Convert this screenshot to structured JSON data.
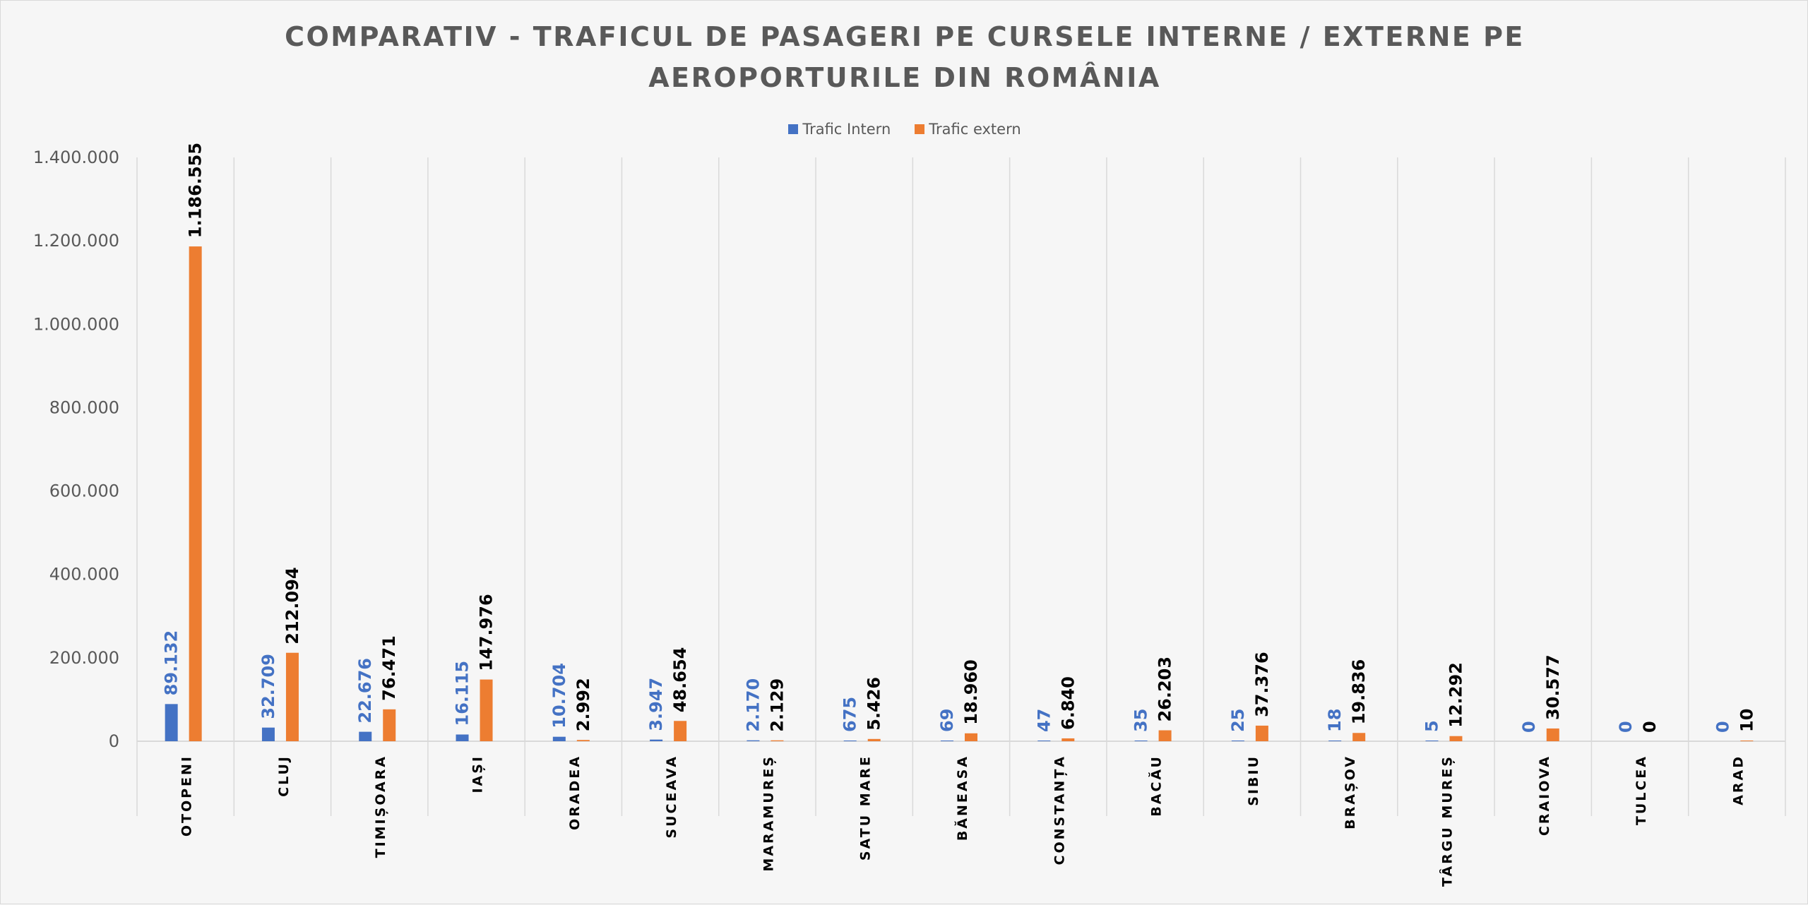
{
  "chart_data": {
    "type": "bar",
    "title": "COMPARATIV - TRAFICUL DE PASAGERI PE CURSELE INTERNE / EXTERNE PE AEROPORTURILE DIN ROMÂNIA",
    "xlabel": "",
    "ylabel": "",
    "ylim": [
      0,
      1400000
    ],
    "y_ticks": [
      "0",
      "200.000",
      "400.000",
      "600.000",
      "800.000",
      "1.000.000",
      "1.200.000",
      "1.400.000"
    ],
    "legend_position": "top",
    "grid": "vertical category separators",
    "categories": [
      "OTOPENI",
      "CLUJ",
      "TIMIȘOARA",
      "IAȘI",
      "ORADEA",
      "SUCEAVA",
      "MARAMUREȘ",
      "SATU MARE",
      "BĂNEASA",
      "CONSTANȚA",
      "BACĂU",
      "SIBIU",
      "BRAȘOV",
      "TÂRGU MUREȘ",
      "CRAIOVA",
      "TULCEA",
      "ARAD"
    ],
    "series": [
      {
        "name": "Trafic Intern",
        "color": "#4472c4",
        "values": [
          89132,
          32709,
          22676,
          16115,
          10704,
          3947,
          2170,
          675,
          69,
          47,
          35,
          25,
          18,
          5,
          0,
          0,
          0
        ],
        "labels": [
          "89.132",
          "32.709",
          "22.676",
          "16.115",
          "10.704",
          "3.947",
          "2.170",
          "675",
          "69",
          "47",
          "35",
          "25",
          "18",
          "5",
          "0",
          "0",
          "0"
        ]
      },
      {
        "name": "Trafic extern",
        "color": "#ed7d31",
        "values": [
          1186555,
          212094,
          76471,
          147976,
          2992,
          48654,
          2129,
          5426,
          18960,
          6840,
          26203,
          37376,
          19836,
          12292,
          30577,
          0,
          10
        ],
        "labels": [
          "1.186.555",
          "212.094",
          "76.471",
          "147.976",
          "2.992",
          "48.654",
          "2.129",
          "5.426",
          "18.960",
          "6.840",
          "26.203",
          "37.376",
          "19.836",
          "12.292",
          "30.577",
          "0",
          "10"
        ]
      }
    ]
  },
  "colors": {
    "intern_label": "#4472c4",
    "extern_label": "#000000",
    "axis_text": "#595959",
    "grid": "#d9d9d9"
  }
}
